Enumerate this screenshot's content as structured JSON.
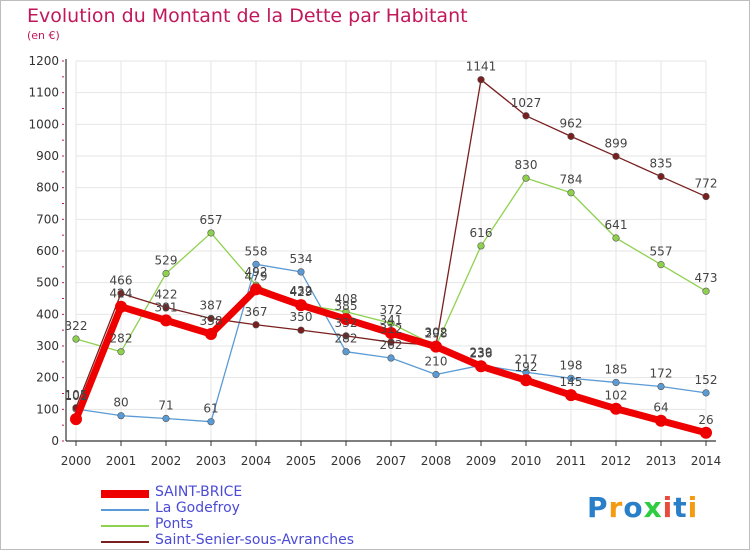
{
  "header": {
    "title": "Evolution du Montant de la Dette par Habitant",
    "subtitle": "(en €)"
  },
  "logo": {
    "text": "Proxiti"
  },
  "colors": {
    "title": "#c2185b",
    "axis": "#333333",
    "grid": "#e6e6e6",
    "legend_text": "#4b4bd6"
  },
  "chart_data": {
    "type": "line",
    "title": "Evolution du Montant de la Dette par Habitant",
    "subtitle": "(en €)",
    "x": [
      "2000",
      "2001",
      "2002",
      "2003",
      "2004",
      "2005",
      "2006",
      "2007",
      "2008",
      "2009",
      "2010",
      "2011",
      "2012",
      "2013",
      "2014"
    ],
    "ylim": [
      0,
      1200
    ],
    "yticks": [
      0,
      100,
      200,
      300,
      400,
      500,
      600,
      700,
      800,
      900,
      1000,
      1100,
      1200
    ],
    "grid": true,
    "legend_position": "bottom-left",
    "series": [
      {
        "name": "SAINT-BRICE",
        "color": "#ee0000",
        "values": [
          69,
          424,
          381,
          338,
          479,
          429,
          385,
          341,
          298,
          236,
          192,
          145,
          102,
          64,
          26
        ],
        "labels": [
          "",
          "424",
          "381",
          "338",
          "479",
          "429",
          "385",
          "341",
          "298",
          "236",
          "192",
          "145",
          "102",
          "64",
          "26"
        ]
      },
      {
        "name": "La Godefroy",
        "color": "#5b9bd5",
        "values": [
          101,
          80,
          71,
          61,
          558,
          534,
          282,
          262,
          210,
          239,
          217,
          198,
          185,
          172,
          152
        ],
        "labels": [
          "101",
          "80",
          "71",
          "61",
          "558",
          "534",
          "282",
          "262",
          "210",
          "239",
          "217",
          "198",
          "185",
          "172",
          "152"
        ]
      },
      {
        "name": "Ponts",
        "color": "#8fd14f",
        "values": [
          322,
          282,
          529,
          657,
          492,
          432,
          408,
          372,
          300,
          616,
          830,
          784,
          641,
          557,
          473
        ],
        "labels": [
          "322",
          "282",
          "529",
          "657",
          "492",
          "432",
          "408",
          "372",
          "",
          "616",
          "830",
          "784",
          "641",
          "557",
          "473"
        ]
      },
      {
        "name": "Saint-Senier-sous-Avranches",
        "color": "#7a1f1f",
        "values": [
          105,
          466,
          422,
          387,
          367,
          350,
          332,
          312,
          302,
          1141,
          1027,
          962,
          899,
          835,
          772
        ],
        "labels": [
          "105",
          "466",
          "422",
          "387",
          "367",
          "350",
          "332",
          "312",
          "302",
          "1141",
          "1027",
          "962",
          "899",
          "835",
          "772"
        ]
      }
    ]
  }
}
